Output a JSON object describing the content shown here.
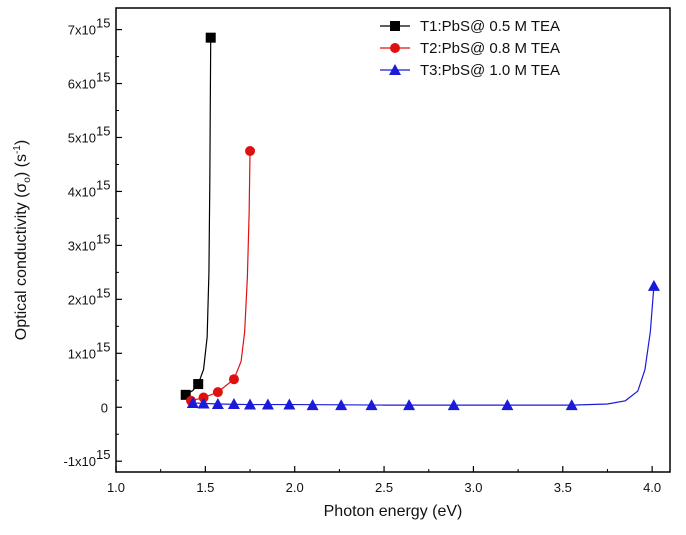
{
  "chart_data": {
    "type": "scatter",
    "title": "",
    "xlabel": "Photon energy (eV)",
    "ylabel_main": "Optical conductivity (σ",
    "ylabel_sub": "o",
    "ylabel_unit": ") (s",
    "ylabel_unit_sup": "-1",
    "ylabel_close": ")",
    "xlim": [
      1.0,
      4.1
    ],
    "ylim": [
      -1200000000000000.0,
      7400000000000000.0
    ],
    "x_ticks": [
      1.0,
      1.5,
      2.0,
      2.5,
      3.0,
      3.5,
      4.0
    ],
    "x_tick_labels": [
      "1.0",
      "1.5",
      "2.0",
      "2.5",
      "3.0",
      "3.5",
      "4.0"
    ],
    "y_ticks": [
      {
        "value": -1000000000000000.0,
        "mantissa": "-1x10",
        "exp": "15"
      },
      {
        "value": 0,
        "mantissa": "0",
        "exp": ""
      },
      {
        "value": 1000000000000000.0,
        "mantissa": "1x10",
        "exp": "15"
      },
      {
        "value": 2000000000000000.0,
        "mantissa": "2x10",
        "exp": "15"
      },
      {
        "value": 3000000000000000.0,
        "mantissa": "3x10",
        "exp": "15"
      },
      {
        "value": 4000000000000000.0,
        "mantissa": "4x10",
        "exp": "15"
      },
      {
        "value": 5000000000000000.0,
        "mantissa": "5x10",
        "exp": "15"
      },
      {
        "value": 6000000000000000.0,
        "mantissa": "6x10",
        "exp": "15"
      },
      {
        "value": 7000000000000000.0,
        "mantissa": "7x10",
        "exp": "15"
      }
    ],
    "grid": false,
    "legend_position": "top-right",
    "series": [
      {
        "name": "T1:PbS@ 0.5 M TEA",
        "color": "#000000",
        "marker": "square",
        "x": [
          1.39,
          1.46,
          1.53
        ],
        "y": [
          230000000000000.0,
          430000000000000.0,
          6850000000000000.0
        ],
        "curve_x": [
          1.39,
          1.43,
          1.46,
          1.49,
          1.51,
          1.52,
          1.525,
          1.53
        ],
        "curve_y": [
          230000000000000.0,
          310000000000000.0,
          430000000000000.0,
          700000000000000.0,
          1300000000000000.0,
          2500000000000000.0,
          4200000000000000.0,
          6850000000000000.0
        ]
      },
      {
        "name": "T2:PbS@ 0.8 M TEA",
        "color": "#e01010",
        "marker": "circle",
        "x": [
          1.42,
          1.49,
          1.57,
          1.66,
          1.75
        ],
        "y": [
          120000000000000.0,
          180000000000000.0,
          280000000000000.0,
          520000000000000.0,
          4750000000000000.0
        ],
        "curve_x": [
          1.42,
          1.49,
          1.57,
          1.66,
          1.7,
          1.72,
          1.735,
          1.745,
          1.75
        ],
        "curve_y": [
          120000000000000.0,
          180000000000000.0,
          280000000000000.0,
          520000000000000.0,
          850000000000000.0,
          1400000000000000.0,
          2400000000000000.0,
          3600000000000000.0,
          4750000000000000.0
        ]
      },
      {
        "name": "T3:PbS@ 1.0 M TEA",
        "color": "#1a1ad8",
        "marker": "triangle",
        "x": [
          1.43,
          1.49,
          1.57,
          1.66,
          1.75,
          1.85,
          1.97,
          2.1,
          2.26,
          2.43,
          2.64,
          2.89,
          3.19,
          3.55,
          4.01
        ],
        "y": [
          80000000000000.0,
          70000000000000.0,
          60000000000000.0,
          60000000000000.0,
          50000000000000.0,
          50000000000000.0,
          50000000000000.0,
          40000000000000.0,
          40000000000000.0,
          40000000000000.0,
          40000000000000.0,
          40000000000000.0,
          40000000000000.0,
          40000000000000.0,
          2250000000000000.0
        ],
        "curve_x": [
          1.43,
          1.57,
          1.75,
          2.0,
          2.5,
          3.0,
          3.55,
          3.75,
          3.85,
          3.92,
          3.96,
          3.99,
          4.01
        ],
        "curve_y": [
          80000000000000.0,
          60000000000000.0,
          50000000000000.0,
          50000000000000.0,
          40000000000000.0,
          40000000000000.0,
          40000000000000.0,
          60000000000000.0,
          120000000000000.0,
          300000000000000.0,
          700000000000000.0,
          1400000000000000.0,
          2250000000000000.0
        ]
      }
    ]
  }
}
